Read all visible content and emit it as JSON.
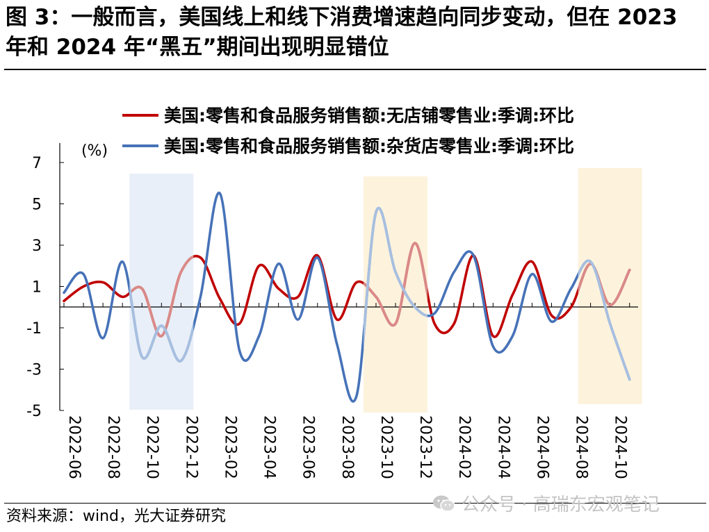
{
  "figure": {
    "title": "图 3：一般而言，美国线上和线下消费增速趋向同步变动，但在 2023 年和 2024 年“黑五”期间出现明显错位",
    "source": "资料来源：wind，光大证券研究",
    "watermark": "公众号 · 高瑞东宏观笔记"
  },
  "chart_data": {
    "type": "line",
    "title": "",
    "xlabel": "",
    "ylabel": "(%)",
    "ylim": [
      -5,
      7
    ],
    "yticks": [
      -5,
      -3,
      -1,
      1,
      3,
      5,
      7
    ],
    "x": [
      "2022-06",
      "2022-07",
      "2022-08",
      "2022-09",
      "2022-10",
      "2022-11",
      "2022-12",
      "2023-01",
      "2023-02",
      "2023-03",
      "2023-04",
      "2023-05",
      "2023-06",
      "2023-07",
      "2023-08",
      "2023-09",
      "2023-10",
      "2023-11",
      "2023-12",
      "2024-01",
      "2024-02",
      "2024-03",
      "2024-04",
      "2024-05",
      "2024-06",
      "2024-07",
      "2024-08",
      "2024-09",
      "2024-10",
      "2024-11"
    ],
    "xtick_labels": [
      "2022-06",
      "2022-08",
      "2022-10",
      "2022-12",
      "2023-02",
      "2023-04",
      "2023-06",
      "2023-08",
      "2023-10",
      "2023-12",
      "2024-02",
      "2024-04",
      "2024-06",
      "2024-08",
      "2024-10"
    ],
    "grid": false,
    "legend_position": "top",
    "series": [
      {
        "name": "美国:零售和食品服务销售额:无店铺零售业:季调:环比",
        "color": "#c00000",
        "faded_color": "#d98a88",
        "values": [
          0.3,
          1.0,
          1.2,
          0.5,
          0.9,
          -1.4,
          1.7,
          2.4,
          0.4,
          -0.8,
          2.0,
          0.9,
          0.5,
          2.5,
          -0.6,
          1.2,
          0.5,
          -0.8,
          3.1,
          -0.8,
          -0.8,
          2.5,
          -1.4,
          0.6,
          2.2,
          -0.4,
          0.0,
          2.1,
          0.1,
          1.8
        ]
      },
      {
        "name": "美国:零售和食品服务销售额:杂货店零售业:季调:环比",
        "color": "#4672b8",
        "faded_color": "#a7bfe0",
        "values": [
          0.7,
          1.6,
          -1.5,
          2.2,
          -2.4,
          -0.9,
          -2.6,
          0.5,
          5.5,
          -2.1,
          -1.4,
          2.1,
          -0.6,
          2.4,
          -1.8,
          -4.3,
          4.6,
          1.7,
          0.0,
          -0.3,
          1.7,
          2.5,
          -1.9,
          -1.4,
          1.6,
          -0.7,
          0.9,
          2.2,
          -0.8,
          -3.5
        ]
      }
    ],
    "highlight_bands": [
      {
        "from": "2022-10",
        "to": "2022-12",
        "color": "#e9eff8"
      },
      {
        "from": "2023-10",
        "to": "2023-12",
        "color": "#fdf3dd"
      },
      {
        "from": "2024-09",
        "to": "2024-11",
        "color": "#fdf3dd"
      }
    ]
  }
}
